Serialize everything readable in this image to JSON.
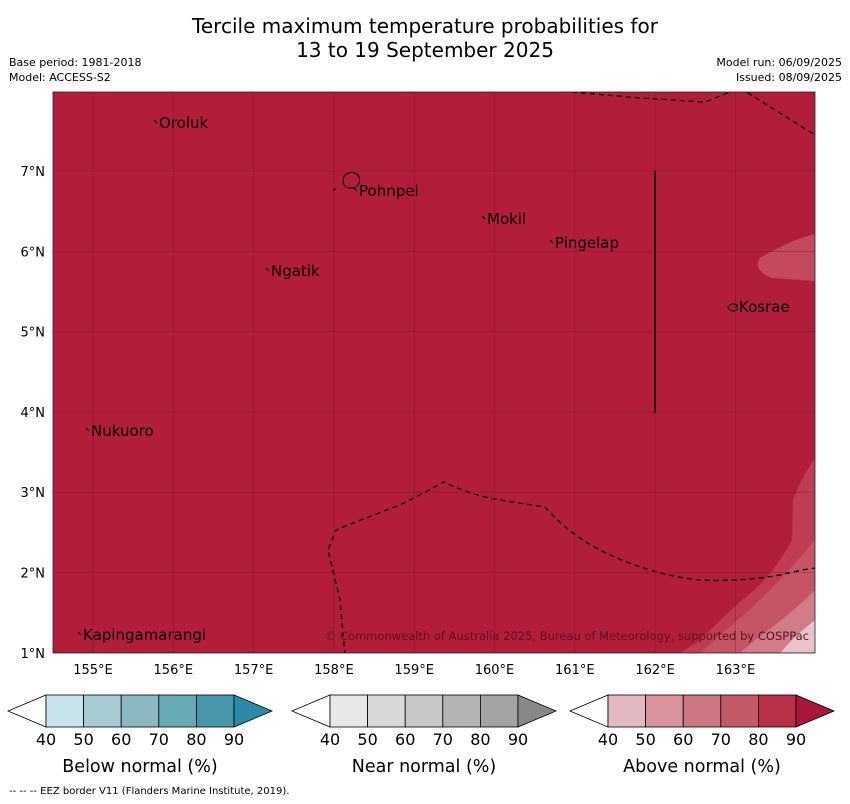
{
  "header": {
    "title_line1": "Tercile maximum temperature probabilities for",
    "title_line2": "13 to 19 September 2025",
    "base_period": "Base period: 1981-2018",
    "model": "Model: ACCESS-S2",
    "model_run": "Model run: 06/09/2025",
    "issued": "Issued: 08/09/2025"
  },
  "map": {
    "lat_ticks": [
      "7°N",
      "6°N",
      "5°N",
      "4°N",
      "3°N",
      "2°N",
      "1°N"
    ],
    "lon_ticks": [
      "155°E",
      "156°E",
      "157°E",
      "158°E",
      "159°E",
      "160°E",
      "161°E",
      "162°E",
      "163°E"
    ],
    "places": [
      {
        "name": "Oroluk",
        "lon": 155.8,
        "lat": 7.6
      },
      {
        "name": "Pohnpei",
        "lon": 158.3,
        "lat": 6.75
      },
      {
        "name": "Mokil",
        "lon": 159.9,
        "lat": 6.4
      },
      {
        "name": "Pingelap",
        "lon": 160.75,
        "lat": 6.1
      },
      {
        "name": "Ngatik",
        "lon": 157.2,
        "lat": 5.75
      },
      {
        "name": "Kosrae",
        "lon": 163.05,
        "lat": 5.3
      },
      {
        "name": "Nukuoro",
        "lon": 154.95,
        "lat": 3.75
      },
      {
        "name": "Kapingamarangi",
        "lon": 154.85,
        "lat": 1.2
      }
    ],
    "fill_color": "#b21e39",
    "copyright": "© Commonwealth of Australia 2025, Bureau of Meteorology, supported by COSPPac"
  },
  "colorbars": [
    {
      "label": "Below normal (%)",
      "ticks": [
        "40",
        "50",
        "60",
        "70",
        "80",
        "90"
      ],
      "colors": [
        "#c8e3e9",
        "#a7cbd2",
        "#8bb8c3",
        "#68a9b8",
        "#4796ac",
        "#2b8aa6"
      ]
    },
    {
      "label": "Near normal (%)",
      "ticks": [
        "40",
        "50",
        "60",
        "70",
        "80",
        "90"
      ],
      "colors": [
        "#e8e8e8",
        "#d8d8d8",
        "#c8c8c8",
        "#b3b3b3",
        "#a3a3a3",
        "#888888"
      ]
    },
    {
      "label": "Above normal (%)",
      "ticks": [
        "40",
        "50",
        "60",
        "70",
        "80",
        "90"
      ],
      "colors": [
        "#e2b9c0",
        "#d8939d",
        "#cc7682",
        "#c45a67",
        "#b93049",
        "#a8163a"
      ]
    }
  ],
  "footnote": "--  --  -- EEZ border V11 (Flanders Marine Institute, 2019)."
}
